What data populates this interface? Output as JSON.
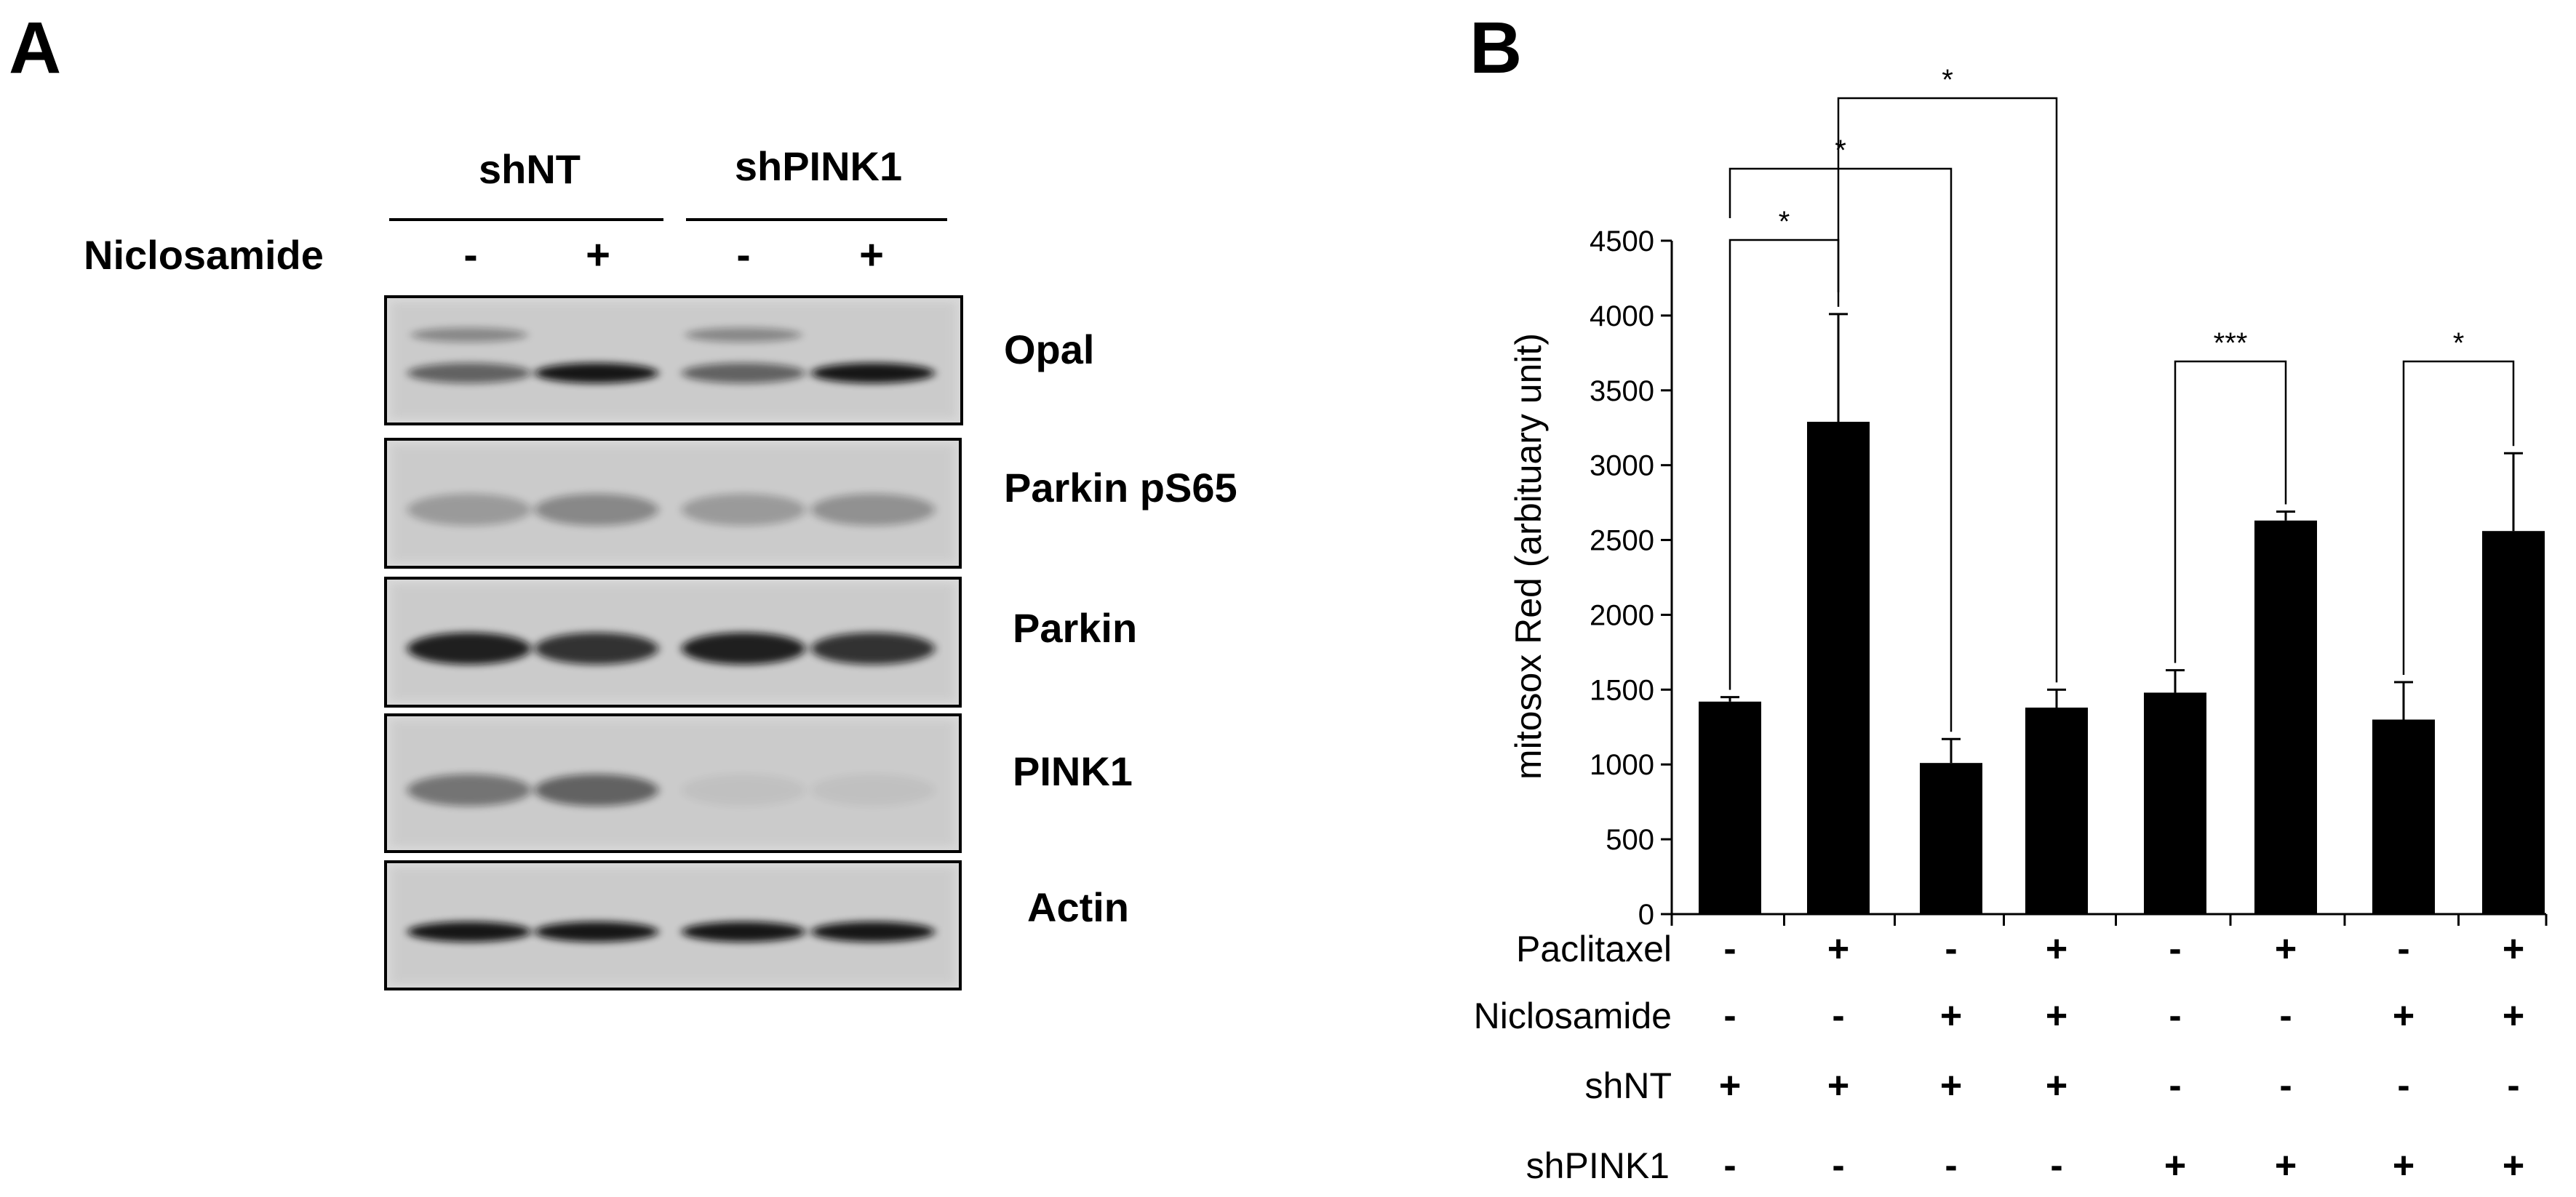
{
  "panel_a": {
    "label": "A",
    "groups": [
      "shNT",
      "shPINK1"
    ],
    "treatment_label": "Niclosamide",
    "lane_signs": [
      "-",
      "+",
      "-",
      "+"
    ],
    "blots": [
      {
        "name": "Opal",
        "bands": [
          0.55,
          0.95,
          0.55,
          0.95
        ],
        "upper_bands": [
          0.35,
          0.0,
          0.35,
          0.0
        ]
      },
      {
        "name": "Parkin pS65",
        "bands": [
          0.25,
          0.35,
          0.25,
          0.3
        ],
        "upper_bands": [
          0,
          0,
          0,
          0
        ]
      },
      {
        "name": "Parkin",
        "bands": [
          0.9,
          0.8,
          0.9,
          0.8
        ],
        "upper_bands": [
          0,
          0,
          0,
          0
        ]
      },
      {
        "name": "PINK1",
        "bands": [
          0.45,
          0.55,
          0.05,
          0.05
        ],
        "upper_bands": [
          0,
          0,
          0,
          0
        ]
      },
      {
        "name": "Actin",
        "bands": [
          0.95,
          0.95,
          0.95,
          0.95
        ],
        "upper_bands": [
          0,
          0,
          0,
          0
        ]
      }
    ]
  },
  "panel_b": {
    "label": "B"
  },
  "chart_data": {
    "type": "bar",
    "ylabel": "mitosox Red (arbituary unit)",
    "ylim": [
      0,
      4500
    ],
    "yticks": [
      0,
      500,
      1000,
      1500,
      2000,
      2500,
      3000,
      3500,
      4000,
      4500
    ],
    "values": [
      1420,
      3290,
      1010,
      1380,
      1480,
      2630,
      1300,
      2560
    ],
    "errors": [
      30,
      720,
      160,
      120,
      150,
      60,
      250,
      520
    ],
    "bar_color": "#000000",
    "condition_rows": [
      {
        "label": "Paclitaxel",
        "signs": [
          "-",
          "+",
          "-",
          "+",
          "-",
          "+",
          "-",
          "+"
        ]
      },
      {
        "label": "Niclosamide",
        "signs": [
          "-",
          "-",
          "+",
          "+",
          "-",
          "-",
          "+",
          "+"
        ]
      },
      {
        "label": "shNT",
        "signs": [
          "+",
          "+",
          "+",
          "+",
          "-",
          "-",
          "-",
          "-"
        ]
      },
      {
        "label": "shPINK1",
        "signs": [
          "-",
          "-",
          "-",
          "-",
          "+",
          "+",
          "+",
          "+"
        ]
      }
    ],
    "significance": [
      {
        "from": 0,
        "to": 1,
        "mark": "*"
      },
      {
        "from": 0,
        "to": 2,
        "mark": "*"
      },
      {
        "from": 1,
        "to": 3,
        "mark": "*"
      },
      {
        "from": 4,
        "to": 5,
        "mark": "***"
      },
      {
        "from": 6,
        "to": 7,
        "mark": "*"
      }
    ]
  }
}
